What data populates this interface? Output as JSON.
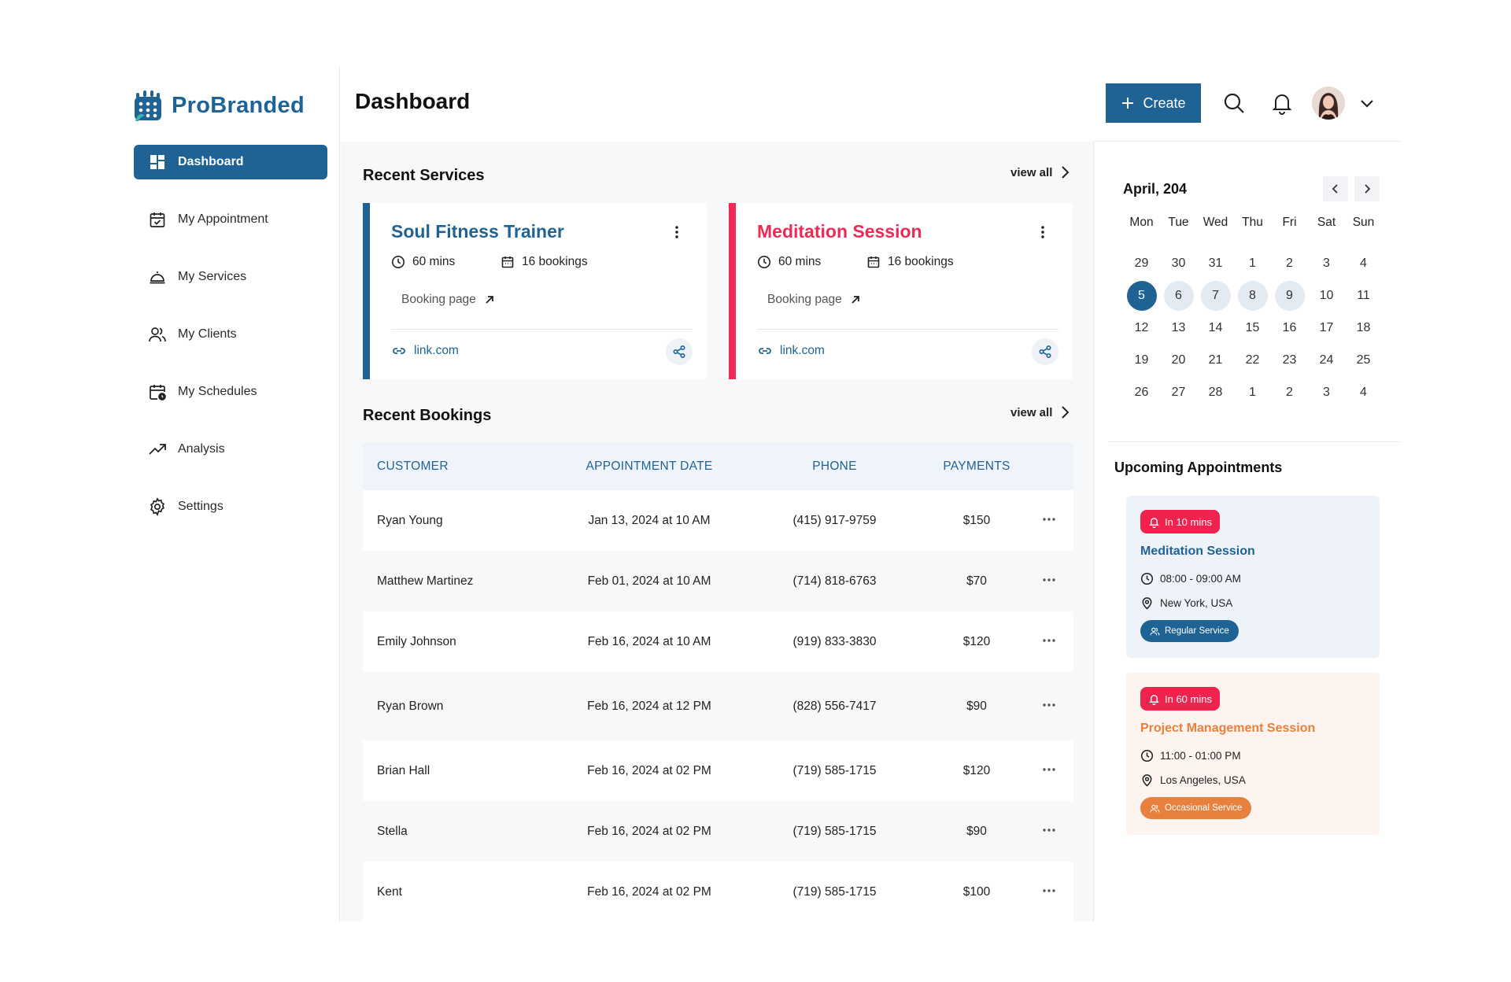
{
  "brand": {
    "name": "ProBranded",
    "primary": "#1f6395",
    "accent_red": "#ee2a55",
    "accent_orange": "#e8803e"
  },
  "sidebar": {
    "items": [
      {
        "label": "Dashboard",
        "icon": "dashboard-icon",
        "active": true
      },
      {
        "label": "My Appointment",
        "icon": "calendar-check-icon"
      },
      {
        "label": "My Services",
        "icon": "service-bell-icon"
      },
      {
        "label": "My Clients",
        "icon": "users-icon"
      },
      {
        "label": "My Schedules",
        "icon": "calendar-clock-icon"
      },
      {
        "label": "Analysis",
        "icon": "trend-up-icon"
      },
      {
        "label": "Settings",
        "icon": "gear-icon"
      }
    ]
  },
  "header": {
    "title": "Dashboard",
    "create_label": "Create"
  },
  "recent_services": {
    "title": "Recent Services",
    "view_all": "view all",
    "cards": [
      {
        "name": "Soul Fitness Trainer",
        "duration": "60 mins",
        "bookings": "16 bookings",
        "booking_page": "Booking page",
        "link": "link.com",
        "color": "#1f6395"
      },
      {
        "name": "Meditation Session",
        "duration": "60 mins",
        "bookings": "16 bookings",
        "booking_page": "Booking page",
        "link": "link.com",
        "color": "#ee2a55"
      }
    ]
  },
  "recent_bookings": {
    "title": "Recent Bookings",
    "view_all": "view all",
    "columns": [
      "CUSTOMER",
      "APPOINTMENT DATE",
      "PHONE",
      "PAYMENTS"
    ],
    "rows": [
      {
        "customer": "Ryan Young",
        "date": "Jan 13, 2024 at 10 AM",
        "phone": "(415) 917-9759",
        "payment": "$150"
      },
      {
        "customer": "Matthew Martinez",
        "date": "Feb 01, 2024 at 10 AM",
        "phone": "(714) 818-6763",
        "payment": "$70"
      },
      {
        "customer": "Emily Johnson",
        "date": "Feb 16, 2024 at 10 AM",
        "phone": "(919) 833-3830",
        "payment": "$120"
      },
      {
        "customer": "Ryan Brown",
        "date": "Feb 16, 2024 at 12 PM",
        "phone": "(828) 556-7417",
        "payment": "$90"
      },
      {
        "customer": "Brian Hall",
        "date": "Feb 16, 2024 at 02 PM",
        "phone": "(719) 585-1715",
        "payment": "$120"
      },
      {
        "customer": "Stella",
        "date": "Feb 16, 2024 at 02 PM",
        "phone": "(719) 585-1715",
        "payment": "$90"
      },
      {
        "customer": "Kent",
        "date": "Feb 16, 2024 at 02 PM",
        "phone": "(719) 585-1715",
        "payment": "$100"
      }
    ]
  },
  "calendar": {
    "month_label": "April, 204",
    "weekdays": [
      "Mon",
      "Tue",
      "Wed",
      "Thu",
      "Fri",
      "Sat",
      "Sun"
    ],
    "weeks": [
      [
        "29",
        "30",
        "31",
        "1",
        "2",
        "3",
        "4"
      ],
      [
        "5",
        "6",
        "7",
        "8",
        "9",
        "10",
        "11"
      ],
      [
        "12",
        "13",
        "14",
        "15",
        "16",
        "17",
        "18"
      ],
      [
        "19",
        "20",
        "21",
        "22",
        "23",
        "24",
        "25"
      ],
      [
        "26",
        "27",
        "28",
        "1",
        "2",
        "3",
        "4"
      ]
    ],
    "selected": "5",
    "highlighted": [
      "6",
      "7",
      "8",
      "9"
    ]
  },
  "upcoming": {
    "title": "Upcoming Appointments",
    "items": [
      {
        "badge": "In 10 mins",
        "name": "Meditation Session",
        "time": "08:00 - 09:00 AM",
        "location": "New York, USA",
        "tag": "Regular Service"
      },
      {
        "badge": "In 60 mins",
        "name": "Project Management Session",
        "time": "11:00 - 01:00 PM",
        "location": "Los Angeles, USA",
        "tag": "Occasional Service"
      }
    ]
  }
}
